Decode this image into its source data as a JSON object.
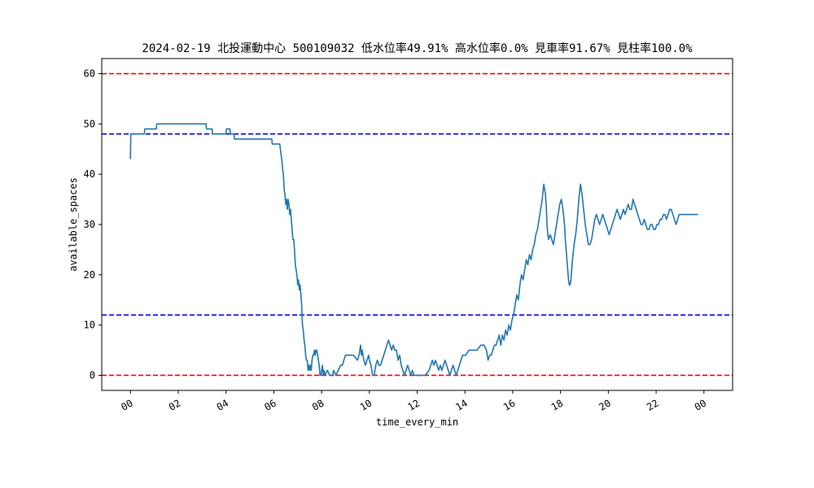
{
  "chart_data": {
    "type": "line",
    "title": "2024-02-19 北投運動中心 500109032 低水位率49.91% 高水位率0.0% 見車率91.67% 見柱率100.0%",
    "xlabel": "time_every_min",
    "ylabel": "available_spaces",
    "xlim_hours": [
      -1.2,
      25.2
    ],
    "ylim": [
      -3,
      63
    ],
    "x_tick_labels": [
      "00",
      "02",
      "04",
      "06",
      "08",
      "10",
      "12",
      "14",
      "16",
      "18",
      "20",
      "22",
      "00"
    ],
    "x_ticks_hours": [
      0,
      2,
      4,
      6,
      8,
      10,
      12,
      14,
      16,
      18,
      20,
      22,
      24
    ],
    "y_ticks": [
      0,
      10,
      20,
      30,
      40,
      50,
      60
    ],
    "reference_lines": [
      {
        "y": 60,
        "color": "#ff0000",
        "style": "dashed"
      },
      {
        "y": 48,
        "color": "#0000ff",
        "style": "dashed"
      },
      {
        "y": 12,
        "color": "#0000ff",
        "style": "dashed"
      },
      {
        "y": 0,
        "color": "#ff0000",
        "style": "dashed"
      }
    ],
    "series": [
      {
        "color": "#1f77b4",
        "points": [
          [
            "00:00",
            43
          ],
          [
            "00:01",
            48
          ],
          [
            "00:15",
            48
          ],
          [
            "00:35",
            48
          ],
          [
            "00:36",
            49
          ],
          [
            "00:55",
            49
          ],
          [
            "01:05",
            49
          ],
          [
            "01:06",
            50
          ],
          [
            "01:30",
            50
          ],
          [
            "02:00",
            50
          ],
          [
            "02:30",
            50
          ],
          [
            "03:10",
            50
          ],
          [
            "03:11",
            49
          ],
          [
            "03:25",
            49
          ],
          [
            "03:26",
            48
          ],
          [
            "03:45",
            48
          ],
          [
            "04:00",
            48
          ],
          [
            "04:01",
            49
          ],
          [
            "04:10",
            49
          ],
          [
            "04:11",
            48
          ],
          [
            "04:20",
            48
          ],
          [
            "04:21",
            47
          ],
          [
            "05:00",
            47
          ],
          [
            "05:40",
            47
          ],
          [
            "05:55",
            47
          ],
          [
            "05:56",
            46
          ],
          [
            "06:15",
            46
          ],
          [
            "06:18",
            44
          ],
          [
            "06:20",
            43
          ],
          [
            "06:22",
            41
          ],
          [
            "06:24",
            40
          ],
          [
            "06:26",
            37
          ],
          [
            "06:28",
            36
          ],
          [
            "06:30",
            34
          ],
          [
            "06:32",
            35
          ],
          [
            "06:34",
            33
          ],
          [
            "06:36",
            35
          ],
          [
            "06:38",
            34
          ],
          [
            "06:40",
            32
          ],
          [
            "06:42",
            33
          ],
          [
            "06:44",
            31
          ],
          [
            "06:46",
            29
          ],
          [
            "06:48",
            27
          ],
          [
            "06:50",
            27
          ],
          [
            "06:52",
            25
          ],
          [
            "06:54",
            22
          ],
          [
            "06:56",
            21
          ],
          [
            "06:58",
            20
          ],
          [
            "07:00",
            18
          ],
          [
            "07:02",
            19
          ],
          [
            "07:04",
            17
          ],
          [
            "07:06",
            18
          ],
          [
            "07:08",
            16
          ],
          [
            "07:10",
            14
          ],
          [
            "07:12",
            10
          ],
          [
            "07:14",
            9
          ],
          [
            "07:16",
            7
          ],
          [
            "07:18",
            6
          ],
          [
            "07:20",
            4
          ],
          [
            "07:22",
            3
          ],
          [
            "07:24",
            3
          ],
          [
            "07:26",
            1
          ],
          [
            "07:28",
            2
          ],
          [
            "07:30",
            1
          ],
          [
            "07:32",
            2
          ],
          [
            "07:34",
            1
          ],
          [
            "07:36",
            3
          ],
          [
            "07:38",
            4
          ],
          [
            "07:40",
            4
          ],
          [
            "07:42",
            5
          ],
          [
            "07:44",
            4
          ],
          [
            "07:46",
            5
          ],
          [
            "07:48",
            5
          ],
          [
            "07:50",
            4
          ],
          [
            "07:52",
            3
          ],
          [
            "07:54",
            2
          ],
          [
            "07:56",
            0
          ],
          [
            "07:58",
            0
          ],
          [
            "08:00",
            1
          ],
          [
            "08:02",
            2
          ],
          [
            "08:04",
            0
          ],
          [
            "08:06",
            1
          ],
          [
            "08:08",
            0
          ],
          [
            "08:15",
            1
          ],
          [
            "08:20",
            0
          ],
          [
            "08:28",
            0
          ],
          [
            "08:30",
            1
          ],
          [
            "08:36",
            0
          ],
          [
            "08:42",
            1
          ],
          [
            "08:48",
            2
          ],
          [
            "08:52",
            2
          ],
          [
            "08:56",
            3
          ],
          [
            "09:00",
            4
          ],
          [
            "09:10",
            4
          ],
          [
            "09:20",
            4
          ],
          [
            "09:30",
            3
          ],
          [
            "09:34",
            4
          ],
          [
            "09:38",
            6
          ],
          [
            "09:40",
            4
          ],
          [
            "09:42",
            5
          ],
          [
            "09:46",
            3
          ],
          [
            "09:50",
            2
          ],
          [
            "09:54",
            3
          ],
          [
            "09:58",
            4
          ],
          [
            "10:00",
            3
          ],
          [
            "10:04",
            2
          ],
          [
            "10:08",
            0
          ],
          [
            "10:12",
            0
          ],
          [
            "10:16",
            2
          ],
          [
            "10:20",
            3
          ],
          [
            "10:24",
            2
          ],
          [
            "10:28",
            2
          ],
          [
            "10:32",
            3
          ],
          [
            "10:36",
            4
          ],
          [
            "10:40",
            5
          ],
          [
            "10:44",
            6
          ],
          [
            "10:48",
            7
          ],
          [
            "10:52",
            6
          ],
          [
            "10:56",
            5
          ],
          [
            "11:00",
            6
          ],
          [
            "11:04",
            5
          ],
          [
            "11:08",
            5
          ],
          [
            "11:12",
            3
          ],
          [
            "11:16",
            4
          ],
          [
            "11:20",
            2
          ],
          [
            "11:24",
            1
          ],
          [
            "11:28",
            0
          ],
          [
            "11:32",
            1
          ],
          [
            "11:36",
            2
          ],
          [
            "11:40",
            1
          ],
          [
            "11:44",
            0
          ],
          [
            "11:48",
            1
          ],
          [
            "11:52",
            0
          ],
          [
            "12:00",
            0
          ],
          [
            "12:10",
            0
          ],
          [
            "12:20",
            0
          ],
          [
            "12:30",
            1
          ],
          [
            "12:34",
            2
          ],
          [
            "12:38",
            3
          ],
          [
            "12:42",
            2
          ],
          [
            "12:46",
            3
          ],
          [
            "12:50",
            2
          ],
          [
            "12:54",
            1
          ],
          [
            "12:58",
            2
          ],
          [
            "13:02",
            1
          ],
          [
            "13:06",
            2
          ],
          [
            "13:10",
            3
          ],
          [
            "13:14",
            2
          ],
          [
            "13:18",
            1
          ],
          [
            "13:22",
            0
          ],
          [
            "13:26",
            1
          ],
          [
            "13:30",
            2
          ],
          [
            "13:34",
            1
          ],
          [
            "13:38",
            0
          ],
          [
            "13:42",
            1
          ],
          [
            "13:46",
            2
          ],
          [
            "13:50",
            3
          ],
          [
            "13:54",
            4
          ],
          [
            "13:58",
            4
          ],
          [
            "14:02",
            4
          ],
          [
            "14:10",
            5
          ],
          [
            "14:20",
            5
          ],
          [
            "14:30",
            5
          ],
          [
            "14:40",
            6
          ],
          [
            "14:48",
            6
          ],
          [
            "14:54",
            5
          ],
          [
            "14:58",
            3
          ],
          [
            "15:02",
            4
          ],
          [
            "15:06",
            4
          ],
          [
            "15:10",
            5
          ],
          [
            "15:14",
            6
          ],
          [
            "15:18",
            6
          ],
          [
            "15:22",
            7
          ],
          [
            "15:26",
            8
          ],
          [
            "15:30",
            6
          ],
          [
            "15:34",
            8
          ],
          [
            "15:38",
            7
          ],
          [
            "15:42",
            9
          ],
          [
            "15:46",
            8
          ],
          [
            "15:50",
            10
          ],
          [
            "15:54",
            9
          ],
          [
            "15:58",
            11
          ],
          [
            "16:02",
            12
          ],
          [
            "16:06",
            14
          ],
          [
            "16:10",
            16
          ],
          [
            "16:14",
            15
          ],
          [
            "16:18",
            18
          ],
          [
            "16:22",
            20
          ],
          [
            "16:26",
            19
          ],
          [
            "16:30",
            21
          ],
          [
            "16:34",
            23
          ],
          [
            "16:38",
            22
          ],
          [
            "16:42",
            24
          ],
          [
            "16:46",
            23
          ],
          [
            "16:50",
            25
          ],
          [
            "16:54",
            26
          ],
          [
            "16:58",
            28
          ],
          [
            "17:02",
            29
          ],
          [
            "17:06",
            31
          ],
          [
            "17:10",
            33
          ],
          [
            "17:14",
            35
          ],
          [
            "17:18",
            38
          ],
          [
            "17:22",
            36
          ],
          [
            "17:24",
            34
          ],
          [
            "17:26",
            30
          ],
          [
            "17:28",
            28
          ],
          [
            "17:30",
            27
          ],
          [
            "17:34",
            28
          ],
          [
            "17:38",
            27
          ],
          [
            "17:42",
            26
          ],
          [
            "17:46",
            28
          ],
          [
            "17:50",
            30
          ],
          [
            "17:54",
            32
          ],
          [
            "17:58",
            34
          ],
          [
            "18:02",
            35
          ],
          [
            "18:06",
            33
          ],
          [
            "18:10",
            30
          ],
          [
            "18:12",
            27
          ],
          [
            "18:14",
            25
          ],
          [
            "18:16",
            23
          ],
          [
            "18:18",
            21
          ],
          [
            "18:20",
            19
          ],
          [
            "18:22",
            18
          ],
          [
            "18:24",
            18
          ],
          [
            "18:26",
            19
          ],
          [
            "18:28",
            21
          ],
          [
            "18:30",
            23
          ],
          [
            "18:34",
            26
          ],
          [
            "18:38",
            28
          ],
          [
            "18:42",
            31
          ],
          [
            "18:46",
            35
          ],
          [
            "18:50",
            38
          ],
          [
            "18:54",
            36
          ],
          [
            "18:58",
            33
          ],
          [
            "19:02",
            30
          ],
          [
            "19:06",
            28
          ],
          [
            "19:10",
            26
          ],
          [
            "19:14",
            26
          ],
          [
            "19:18",
            27
          ],
          [
            "19:22",
            29
          ],
          [
            "19:26",
            31
          ],
          [
            "19:30",
            32
          ],
          [
            "19:34",
            31
          ],
          [
            "19:38",
            30
          ],
          [
            "19:42",
            31
          ],
          [
            "19:46",
            32
          ],
          [
            "19:50",
            31
          ],
          [
            "19:54",
            30
          ],
          [
            "19:58",
            29
          ],
          [
            "20:02",
            28
          ],
          [
            "20:06",
            29
          ],
          [
            "20:10",
            30
          ],
          [
            "20:14",
            31
          ],
          [
            "20:18",
            32
          ],
          [
            "20:22",
            33
          ],
          [
            "20:26",
            32
          ],
          [
            "20:30",
            31
          ],
          [
            "20:34",
            32
          ],
          [
            "20:38",
            33
          ],
          [
            "20:42",
            32
          ],
          [
            "20:46",
            33
          ],
          [
            "20:50",
            34
          ],
          [
            "20:54",
            33
          ],
          [
            "20:58",
            33
          ],
          [
            "21:02",
            35
          ],
          [
            "21:06",
            34
          ],
          [
            "21:10",
            33
          ],
          [
            "21:14",
            32
          ],
          [
            "21:18",
            31
          ],
          [
            "21:22",
            30
          ],
          [
            "21:26",
            30
          ],
          [
            "21:30",
            31
          ],
          [
            "21:34",
            30
          ],
          [
            "21:38",
            29
          ],
          [
            "21:42",
            29
          ],
          [
            "21:46",
            30
          ],
          [
            "21:50",
            30
          ],
          [
            "21:54",
            29
          ],
          [
            "21:58",
            29
          ],
          [
            "22:02",
            30
          ],
          [
            "22:06",
            30
          ],
          [
            "22:10",
            31
          ],
          [
            "22:14",
            31
          ],
          [
            "22:18",
            32
          ],
          [
            "22:22",
            32
          ],
          [
            "22:26",
            31
          ],
          [
            "22:30",
            32
          ],
          [
            "22:34",
            33
          ],
          [
            "22:38",
            33
          ],
          [
            "22:42",
            32
          ],
          [
            "22:46",
            31
          ],
          [
            "22:50",
            30
          ],
          [
            "22:54",
            31
          ],
          [
            "22:58",
            32
          ],
          [
            "23:02",
            32
          ],
          [
            "23:10",
            32
          ],
          [
            "23:20",
            32
          ],
          [
            "23:30",
            32
          ],
          [
            "23:45",
            32
          ]
        ]
      }
    ]
  }
}
